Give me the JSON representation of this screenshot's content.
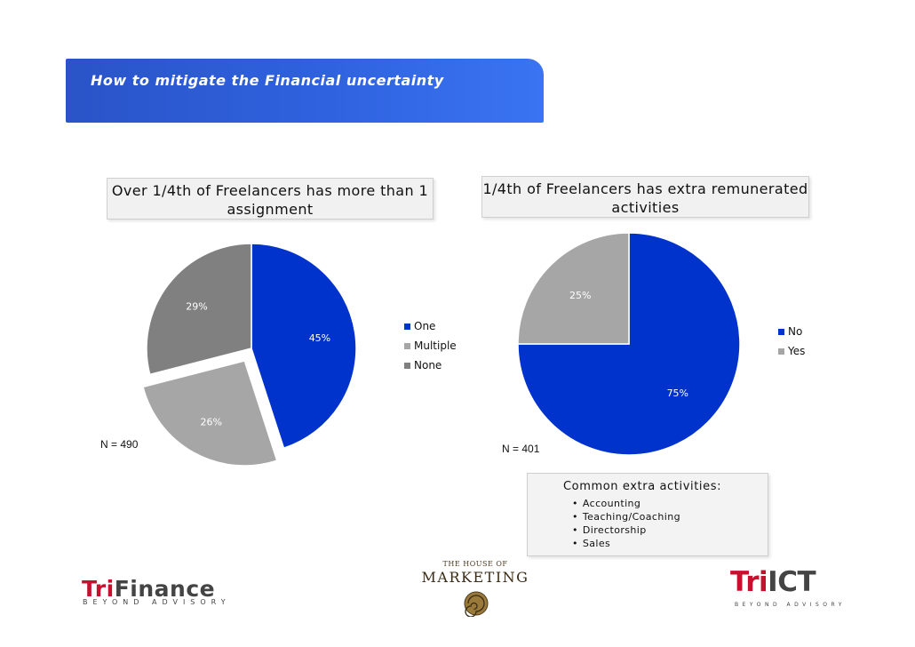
{
  "slide": {
    "title": "How to mitigate the Financial uncertainty"
  },
  "chart_data": [
    {
      "type": "pie",
      "caption": "Over 1/4th of Freelancers has more than 1 assignment",
      "categories": [
        "One",
        "Multiple",
        "None"
      ],
      "values": [
        45,
        26,
        29
      ],
      "value_labels": [
        "45%",
        "26%",
        "29%"
      ],
      "colors": [
        "#0033cc",
        "#a6a6a6",
        "#808080"
      ],
      "exploded": [
        "Multiple"
      ],
      "legend_placement": "right",
      "sample_size_label": "N = 490"
    },
    {
      "type": "pie",
      "caption": "1/4th of Freelancers has extra remunerated activities",
      "categories": [
        "No",
        "Yes"
      ],
      "values": [
        75,
        25
      ],
      "value_labels": [
        "75%",
        "25%"
      ],
      "colors": [
        "#0033cc",
        "#a6a6a6"
      ],
      "legend_placement": "right",
      "sample_size_label": "N = 401"
    }
  ],
  "activities_box": {
    "title": "Common extra activities:",
    "items": [
      "Accounting",
      "Teaching/Coaching",
      "Directorship",
      "Sales"
    ]
  },
  "logos": {
    "trifinance": {
      "name_part1": "Tri",
      "name_part2": "Finance",
      "tagline": "BEYOND ADVISORY"
    },
    "house_of_marketing": {
      "line1": "THE HOUSE OF",
      "line2": "MARKETING"
    },
    "trict": {
      "name_part1": "Tri",
      "name_part2": "ICT",
      "tagline": "BEYOND ADVISORY"
    }
  }
}
